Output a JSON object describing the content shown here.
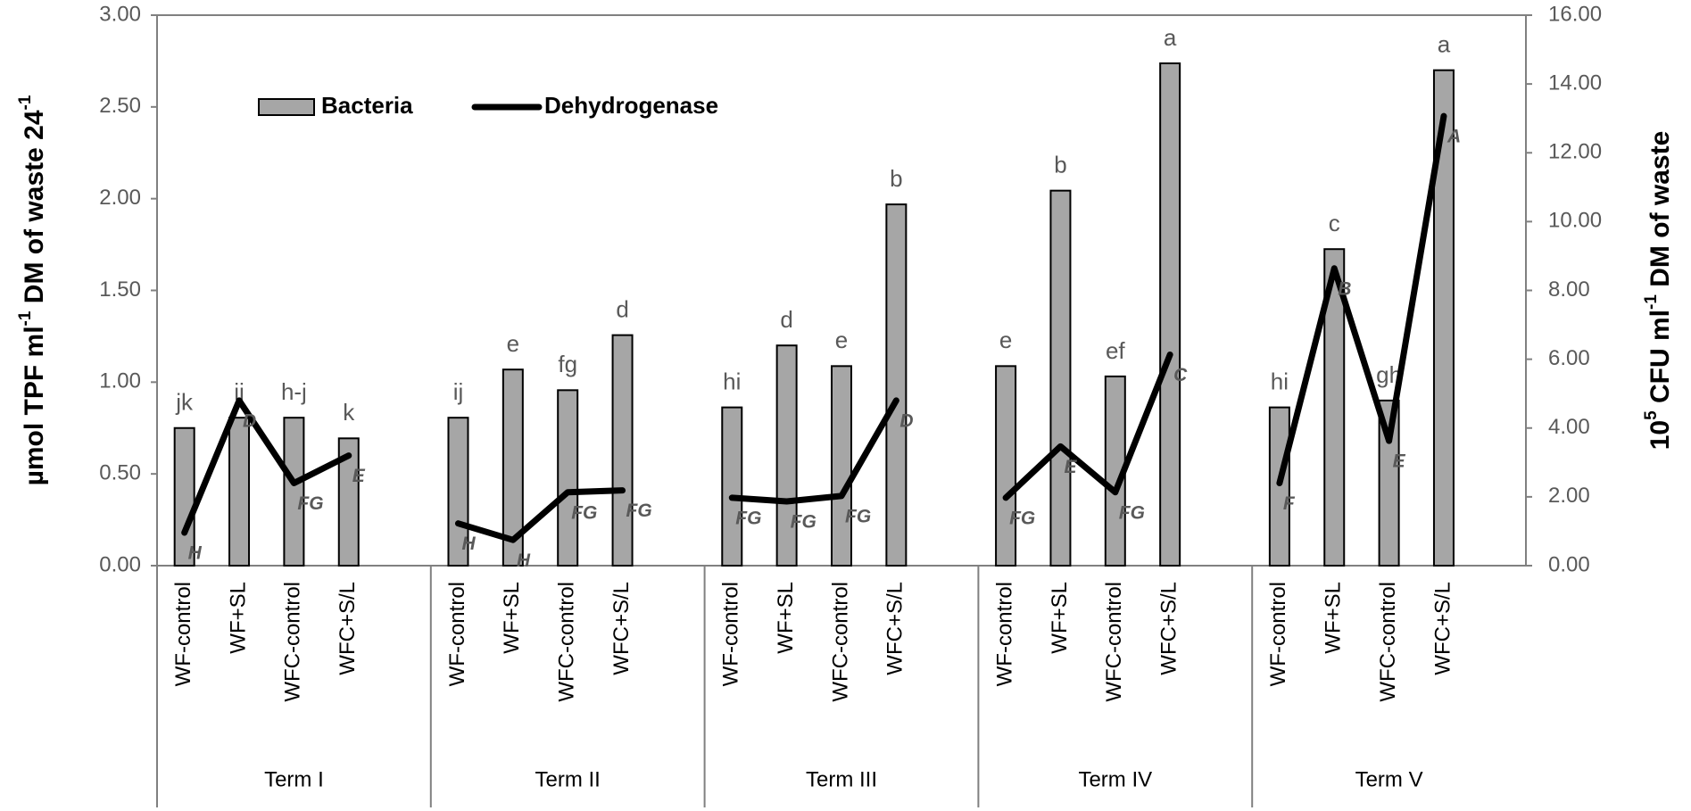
{
  "chart_data": {
    "type": "bar-line",
    "y_label": [
      "µmol TPF ml",
      "-1",
      "  DM of waste 24",
      "-1"
    ],
    "y2_label": [
      "10",
      "5",
      " CFU ml",
      "-1",
      " DM of waste"
    ],
    "series": [
      {
        "name": "Bacteria",
        "color": "#a6a6a6",
        "axis": "y2"
      },
      {
        "name": "Dehydrogenase",
        "color": "#000000",
        "axis": "y"
      }
    ],
    "groups": [
      {
        "name": "Term I",
        "categories": [
          "WF-control",
          "WF+SL",
          "WFC-control",
          "WFC+S/L"
        ],
        "values": [
          [
            4.0,
            4.3,
            4.3,
            3.7
          ],
          [
            0.18,
            0.9,
            0.45,
            0.6
          ]
        ],
        "letters": [
          [
            "jk",
            "ij",
            "h-j",
            "k"
          ],
          [
            "H",
            "D",
            "FG",
            "E"
          ]
        ]
      },
      {
        "name": "Term II",
        "categories": [
          "WF-control",
          "WF+SL",
          "WFC-control",
          "WFC+S/L"
        ],
        "values": [
          [
            4.3,
            5.7,
            5.1,
            6.7
          ],
          [
            0.23,
            0.14,
            0.4,
            0.41
          ]
        ],
        "letters": [
          [
            "ij",
            "e",
            "fg",
            "d"
          ],
          [
            "H",
            "H",
            "FG",
            "FG"
          ]
        ]
      },
      {
        "name": "Term III",
        "categories": [
          "WF-control",
          "WF+SL",
          "WFC-control",
          "WFC+S/L"
        ],
        "values": [
          [
            4.6,
            6.4,
            5.8,
            10.5
          ],
          [
            0.37,
            0.35,
            0.38,
            0.9
          ]
        ],
        "letters": [
          [
            "hi",
            "d",
            "e",
            "b"
          ],
          [
            "FG",
            "FG",
            "FG",
            "D"
          ]
        ]
      },
      {
        "name": "Term IV",
        "categories": [
          "WF-control",
          "WF+SL",
          "WFC-control",
          "WFC+S/L"
        ],
        "values": [
          [
            5.8,
            10.9,
            5.5,
            14.6
          ],
          [
            0.37,
            0.65,
            0.4,
            1.15
          ]
        ],
        "letters": [
          [
            "e",
            "b",
            "ef",
            "a"
          ],
          [
            "FG",
            "E",
            "FG",
            "C"
          ]
        ]
      },
      {
        "name": "Term V",
        "categories": [
          "WF-control",
          "WF+SL",
          "WFC-control",
          "WFC+S/L"
        ],
        "values": [
          [
            4.6,
            9.2,
            4.8,
            14.4
          ],
          [
            0.45,
            1.62,
            0.68,
            2.45
          ]
        ],
        "letters": [
          [
            "hi",
            "c",
            "gh",
            "a"
          ],
          [
            "F",
            "B",
            "E",
            "A"
          ]
        ]
      }
    ],
    "ylim": [
      0,
      3
    ],
    "yticks": [
      {
        "value": 0,
        "label": "0.00"
      },
      {
        "value": 0.5,
        "label": "0.50"
      },
      {
        "value": 1,
        "label": "1.00"
      },
      {
        "value": 1.5,
        "label": "1.50"
      },
      {
        "value": 2,
        "label": "2.00"
      },
      {
        "value": 2.5,
        "label": "2.50"
      },
      {
        "value": 3,
        "label": "3.00"
      }
    ],
    "y2lim": [
      0,
      16
    ],
    "y2ticks": [
      {
        "value": 0,
        "label": "0.00"
      },
      {
        "value": 2,
        "label": "2.00"
      },
      {
        "value": 4,
        "label": "4.00"
      },
      {
        "value": 6,
        "label": "6.00"
      },
      {
        "value": 8,
        "label": "8.00"
      },
      {
        "value": 10,
        "label": "10.00"
      },
      {
        "value": 12,
        "label": "12.00"
      },
      {
        "value": 14,
        "label": "14.00"
      },
      {
        "value": 16,
        "label": "16.00"
      }
    ],
    "legend": "upper left"
  }
}
